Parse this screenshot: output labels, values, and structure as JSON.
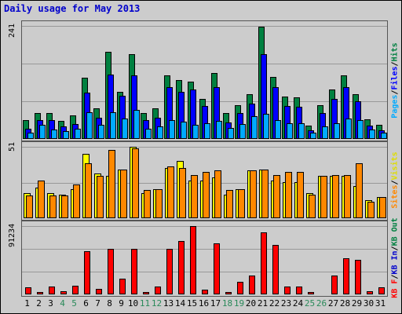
{
  "title": "Daily usage for May 2013",
  "colors": {
    "pages": "#00aaff",
    "files": "#0000ff",
    "hits": "#008040",
    "visits": "#ffff00",
    "sites": "#ff8800",
    "kb_in": "#0000cc",
    "kb_out": "#008040",
    "kb_f": "#ff0000",
    "weekend_label": "#2a8a5a"
  },
  "chart_data": [
    {
      "type": "bar",
      "id": "hits-files-pages",
      "title": "Daily usage for May 2013",
      "ymax_label": "241",
      "ylim": [
        0,
        241
      ],
      "grid": true,
      "categories": [
        "1",
        "2",
        "3",
        "4",
        "5",
        "6",
        "7",
        "8",
        "9",
        "10",
        "11",
        "12",
        "13",
        "14",
        "15",
        "16",
        "17",
        "18",
        "19",
        "20",
        "21",
        "22",
        "23",
        "24",
        "25",
        "26",
        "27",
        "28",
        "29",
        "30",
        "31"
      ],
      "legend_right": [
        "Pages",
        "Files",
        "Hits"
      ],
      "series": [
        {
          "name": "Hits",
          "values": [
            40,
            55,
            55,
            38,
            50,
            130,
            65,
            185,
            100,
            180,
            55,
            65,
            135,
            125,
            123,
            85,
            140,
            55,
            72,
            95,
            240,
            132,
            90,
            88,
            28,
            72,
            105,
            136,
            95,
            42,
            30
          ]
        },
        {
          "name": "Files",
          "values": [
            22,
            40,
            40,
            27,
            32,
            98,
            45,
            138,
            92,
            135,
            40,
            45,
            110,
            100,
            105,
            70,
            110,
            35,
            55,
            75,
            180,
            110,
            70,
            68,
            18,
            55,
            85,
            110,
            80,
            28,
            18
          ]
        },
        {
          "name": "Pages",
          "values": [
            14,
            30,
            20,
            16,
            22,
            57,
            30,
            57,
            43,
            62,
            22,
            26,
            40,
            36,
            30,
            34,
            38,
            24,
            32,
            48,
            54,
            40,
            34,
            33,
            14,
            26,
            34,
            43,
            40,
            20,
            14
          ]
        }
      ]
    },
    {
      "type": "bar",
      "id": "visits-sites",
      "ymax_label": "51",
      "ylim": [
        0,
        51
      ],
      "grid": true,
      "categories": [
        "1",
        "2",
        "3",
        "4",
        "5",
        "6",
        "7",
        "8",
        "9",
        "10",
        "11",
        "12",
        "13",
        "14",
        "15",
        "16",
        "17",
        "18",
        "19",
        "20",
        "21",
        "22",
        "23",
        "24",
        "25",
        "26",
        "27",
        "28",
        "29",
        "30",
        "31"
      ],
      "legend_right": [
        "Sites",
        "Visits"
      ],
      "series": [
        {
          "name": "Visits",
          "values": [
            18,
            22,
            18,
            17,
            21,
            46,
            32,
            30,
            35,
            51,
            18,
            21,
            36,
            41,
            27,
            27,
            29,
            17,
            21,
            34,
            35,
            27,
            26,
            26,
            18,
            30,
            30,
            30,
            23,
            13,
            15
          ]
        },
        {
          "name": "Sites",
          "values": [
            16,
            27,
            16,
            16,
            24,
            39,
            30,
            49,
            35,
            50,
            20,
            21,
            37,
            36,
            31,
            33,
            34,
            20,
            21,
            34,
            35,
            31,
            33,
            33,
            17,
            30,
            31,
            31,
            39,
            12,
            15
          ]
        }
      ]
    },
    {
      "type": "bar",
      "id": "kbytes",
      "ymax_label": "91234",
      "ylim": [
        0,
        91234
      ],
      "grid": true,
      "categories": [
        "1",
        "2",
        "3",
        "4",
        "5",
        "6",
        "7",
        "8",
        "9",
        "10",
        "11",
        "12",
        "13",
        "14",
        "15",
        "16",
        "17",
        "18",
        "19",
        "20",
        "21",
        "22",
        "23",
        "24",
        "25",
        "26",
        "27",
        "28",
        "29",
        "30",
        "31"
      ],
      "legend_right": [
        "KB F",
        "KB In",
        "KB Out"
      ],
      "series": [
        {
          "name": "KB F",
          "values": [
            9000,
            3000,
            11000,
            4000,
            12000,
            58000,
            7000,
            61000,
            21000,
            61000,
            3000,
            10000,
            61000,
            71000,
            91234,
            6000,
            68000,
            3000,
            17000,
            25000,
            83000,
            66000,
            10000,
            11000,
            3000,
            1000,
            25000,
            48000,
            46000,
            4000,
            9000
          ]
        }
      ]
    }
  ],
  "legend_labels": {
    "pages": "Pages",
    "files": "Files",
    "hits": "Hits",
    "sites": "Sites",
    "visits": "Visits",
    "kb_f": "KB F",
    "kb_in": "KB In",
    "kb_out": "KB Out",
    "sep": "/"
  },
  "xaxis": {
    "labels": [
      "1",
      "2",
      "3",
      "4",
      "5",
      "6",
      "7",
      "8",
      "9",
      "10",
      "11",
      "12",
      "13",
      "14",
      "15",
      "16",
      "17",
      "18",
      "19",
      "20",
      "21",
      "22",
      "23",
      "24",
      "25",
      "26",
      "27",
      "28",
      "29",
      "30",
      "31"
    ],
    "weekend_days": [
      "4",
      "5",
      "11",
      "12",
      "18",
      "19",
      "25",
      "26"
    ]
  }
}
